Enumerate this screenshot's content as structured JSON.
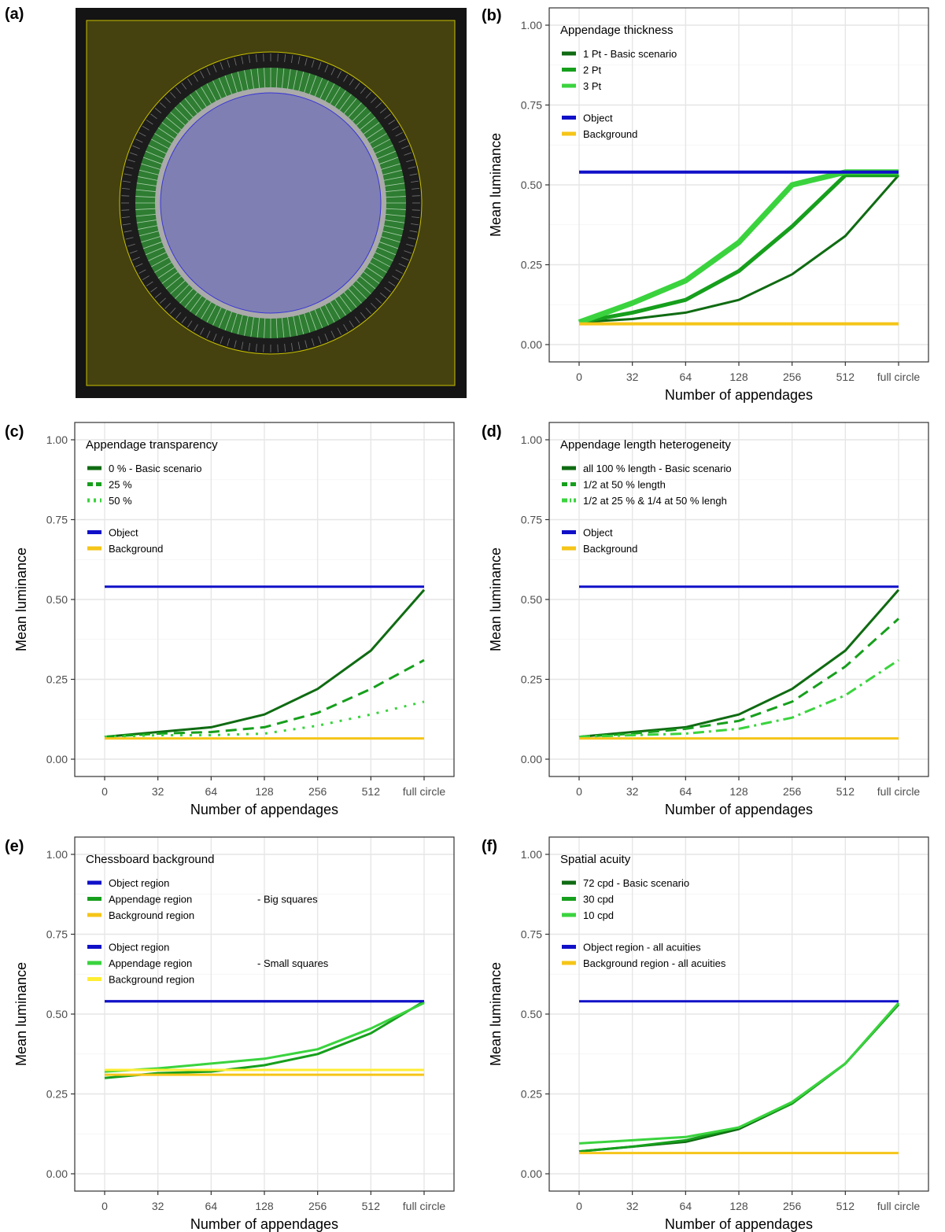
{
  "panel_a": {
    "label": "(a)",
    "colors": {
      "frame": "#141414",
      "background": "#45420f",
      "border": "#c9c100",
      "ring": "#1c1c1c",
      "appendage": "#2e7d32",
      "halo": "#aaaaaa",
      "object": "#7f7fb3",
      "object_edge": "#3a36d6"
    },
    "appendage_count": 128
  },
  "chart_data": [
    {
      "panel": "(b)",
      "type": "line",
      "xlabel": "Number of appendages",
      "ylabel": "Mean luminance",
      "categories": [
        "0",
        "32",
        "64",
        "128",
        "256",
        "512",
        "full circle"
      ],
      "ylim": [
        0,
        1
      ],
      "yticks": [
        "0.00",
        "0.25",
        "0.50",
        "0.75",
        "1.00"
      ],
      "grid": true,
      "legend_position": "top-left",
      "legend_title": "Appendage thickness",
      "series": [
        {
          "name": "1 Pt - Basic scenario",
          "color": "#0f6b12",
          "dash": "solid",
          "width": 3,
          "values": [
            0.07,
            0.08,
            0.1,
            0.14,
            0.22,
            0.34,
            0.53
          ]
        },
        {
          "name": "2 Pt",
          "color": "#169f1c",
          "dash": "solid",
          "width": 5,
          "values": [
            0.07,
            0.1,
            0.14,
            0.23,
            0.37,
            0.53,
            0.53
          ]
        },
        {
          "name": "3 Pt",
          "color": "#3ad33e",
          "dash": "solid",
          "width": 7,
          "values": [
            0.07,
            0.13,
            0.2,
            0.32,
            0.5,
            0.54,
            0.54
          ]
        },
        {
          "name": "Object",
          "color": "#1010c8",
          "dash": "solid",
          "width": 4,
          "values": [
            0.54,
            0.54,
            0.54,
            0.54,
            0.54,
            0.54,
            0.54
          ]
        },
        {
          "name": "Background",
          "color": "#f5c518",
          "dash": "solid",
          "width": 4,
          "values": [
            0.065,
            0.065,
            0.065,
            0.065,
            0.065,
            0.065,
            0.065
          ]
        }
      ]
    },
    {
      "panel": "(c)",
      "type": "line",
      "xlabel": "Number of appendages",
      "ylabel": "Mean luminance",
      "categories": [
        "0",
        "32",
        "64",
        "128",
        "256",
        "512",
        "full circle"
      ],
      "ylim": [
        0,
        1
      ],
      "yticks": [
        "0.00",
        "0.25",
        "0.50",
        "0.75",
        "1.00"
      ],
      "grid": true,
      "legend_position": "top-left",
      "legend_title": "Appendage transparency",
      "series": [
        {
          "name": "0 % - Basic scenario",
          "color": "#0f6b12",
          "dash": "solid",
          "width": 3,
          "values": [
            0.07,
            0.085,
            0.1,
            0.14,
            0.22,
            0.34,
            0.53
          ]
        },
        {
          "name": "25 %",
          "color": "#169f1c",
          "dash": "dashed",
          "width": 3,
          "values": [
            0.07,
            0.08,
            0.085,
            0.1,
            0.145,
            0.22,
            0.31
          ]
        },
        {
          "name": "50 %",
          "color": "#3ad33e",
          "dash": "dotted",
          "width": 3,
          "values": [
            0.07,
            0.075,
            0.075,
            0.08,
            0.105,
            0.14,
            0.18
          ]
        },
        {
          "name": "Object",
          "color": "#1010c8",
          "dash": "solid",
          "width": 3,
          "values": [
            0.54,
            0.54,
            0.54,
            0.54,
            0.54,
            0.54,
            0.54
          ]
        },
        {
          "name": "Background",
          "color": "#f5c518",
          "dash": "solid",
          "width": 3,
          "values": [
            0.065,
            0.065,
            0.065,
            0.065,
            0.065,
            0.065,
            0.065
          ]
        }
      ]
    },
    {
      "panel": "(d)",
      "type": "line",
      "xlabel": "Number of appendages",
      "ylabel": "Mean luminance",
      "categories": [
        "0",
        "32",
        "64",
        "128",
        "256",
        "512",
        "full circle"
      ],
      "ylim": [
        0,
        1
      ],
      "yticks": [
        "0.00",
        "0.25",
        "0.50",
        "0.75",
        "1.00"
      ],
      "grid": true,
      "legend_position": "top-left",
      "legend_title": "Appendage length heterogeneity",
      "series": [
        {
          "name": "all 100 % length - Basic scenario",
          "color": "#0f6b12",
          "dash": "solid",
          "width": 3,
          "values": [
            0.07,
            0.085,
            0.1,
            0.14,
            0.22,
            0.34,
            0.53
          ]
        },
        {
          "name": "1/2 at 50 % length",
          "color": "#169f1c",
          "dash": "dashed",
          "width": 3,
          "values": [
            0.07,
            0.08,
            0.095,
            0.12,
            0.18,
            0.29,
            0.44
          ]
        },
        {
          "name": "1/2 at 25 % & 1/4 at 50 % lengh",
          "color": "#3ad33e",
          "dash": "dashdot",
          "width": 3,
          "values": [
            0.07,
            0.075,
            0.08,
            0.095,
            0.13,
            0.2,
            0.31
          ]
        },
        {
          "name": "Object",
          "color": "#1010c8",
          "dash": "solid",
          "width": 3,
          "values": [
            0.54,
            0.54,
            0.54,
            0.54,
            0.54,
            0.54,
            0.54
          ]
        },
        {
          "name": "Background",
          "color": "#f5c518",
          "dash": "solid",
          "width": 3,
          "values": [
            0.065,
            0.065,
            0.065,
            0.065,
            0.065,
            0.065,
            0.065
          ]
        }
      ]
    },
    {
      "panel": "(e)",
      "type": "line",
      "xlabel": "Number of appendages",
      "ylabel": "Mean luminance",
      "categories": [
        "0",
        "32",
        "64",
        "128",
        "256",
        "512",
        "full circle"
      ],
      "ylim": [
        0,
        1
      ],
      "yticks": [
        "0.00",
        "0.25",
        "0.50",
        "0.75",
        "1.00"
      ],
      "grid": true,
      "legend_position": "top-left",
      "legend_title": "Chessboard background",
      "legend_groups": [
        {
          "suffix": "- Big squares",
          "items": [
            "Object region",
            "Appendage region",
            "Background region"
          ]
        },
        {
          "suffix": "- Small squares",
          "items": [
            "Object region",
            "Appendage region",
            "Background region"
          ]
        }
      ],
      "series": [
        {
          "name": "Object region",
          "color": "#1010c8",
          "dash": "solid",
          "width": 3,
          "values": [
            0.54,
            0.54,
            0.54,
            0.54,
            0.54,
            0.54,
            0.54
          ]
        },
        {
          "name": "Appendage region",
          "color": "#169f1c",
          "dash": "solid",
          "width": 3,
          "values": [
            0.3,
            0.315,
            0.32,
            0.34,
            0.375,
            0.44,
            0.54
          ]
        },
        {
          "name": "Background region",
          "color": "#f5c518",
          "dash": "solid",
          "width": 3,
          "values": [
            0.31,
            0.31,
            0.31,
            0.31,
            0.31,
            0.31,
            0.31
          ]
        },
        {
          "name": "Object region",
          "color": "#1010c8",
          "dash": "solid",
          "width": 3,
          "values": [
            0.54,
            0.54,
            0.54,
            0.54,
            0.54,
            0.54,
            0.54
          ]
        },
        {
          "name": "Appendage region",
          "color": "#3ad33e",
          "dash": "solid",
          "width": 3,
          "values": [
            0.32,
            0.33,
            0.345,
            0.36,
            0.39,
            0.455,
            0.535
          ]
        },
        {
          "name": "Background region",
          "color": "#ffee33",
          "dash": "solid",
          "width": 3,
          "values": [
            0.325,
            0.325,
            0.325,
            0.325,
            0.325,
            0.325,
            0.325
          ]
        }
      ]
    },
    {
      "panel": "(f)",
      "type": "line",
      "xlabel": "Number of appendages",
      "ylabel": "Mean luminance",
      "categories": [
        "0",
        "32",
        "64",
        "128",
        "256",
        "512",
        "full circle"
      ],
      "ylim": [
        0,
        1
      ],
      "yticks": [
        "0.00",
        "0.25",
        "0.50",
        "0.75",
        "1.00"
      ],
      "grid": true,
      "legend_position": "top-left",
      "legend_title": "Spatial acuity",
      "series": [
        {
          "name": "72 cpd - Basic scenario",
          "color": "#0f6b12",
          "dash": "solid",
          "width": 3,
          "values": [
            0.07,
            0.085,
            0.1,
            0.14,
            0.22,
            0.345,
            0.53
          ]
        },
        {
          "name": "30 cpd",
          "color": "#169f1c",
          "dash": "solid",
          "width": 3,
          "values": [
            0.07,
            0.085,
            0.105,
            0.145,
            0.22,
            0.345,
            0.53
          ]
        },
        {
          "name": "10 cpd",
          "color": "#3ad33e",
          "dash": "solid",
          "width": 3,
          "values": [
            0.095,
            0.105,
            0.115,
            0.145,
            0.225,
            0.345,
            0.535
          ]
        },
        {
          "name": "Object region - all acuities",
          "color": "#1010c8",
          "dash": "solid",
          "width": 3,
          "values": [
            0.54,
            0.54,
            0.54,
            0.54,
            0.54,
            0.54,
            0.54
          ]
        },
        {
          "name": "Background region - all acuities",
          "color": "#f5c518",
          "dash": "solid",
          "width": 3,
          "values": [
            0.065,
            0.065,
            0.065,
            0.065,
            0.065,
            0.065,
            0.065
          ]
        }
      ]
    }
  ]
}
